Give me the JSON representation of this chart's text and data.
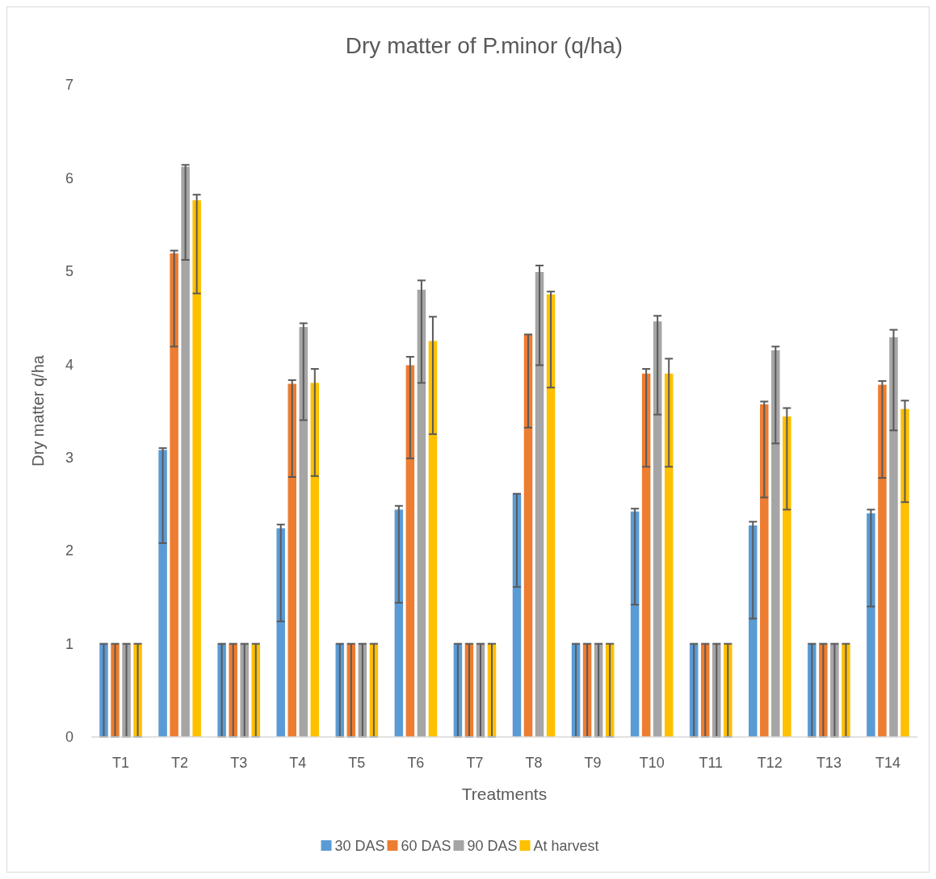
{
  "chart_data": {
    "type": "bar",
    "title": "Dry matter of P.minor (q/ha)",
    "xlabel": "Treatments",
    "ylabel": "Dry matter q/ha",
    "categories": [
      "T1",
      "T2",
      "T3",
      "T4",
      "T5",
      "T6",
      "T7",
      "T8",
      "T9",
      "T10",
      "T11",
      "T12",
      "T13",
      "T14"
    ],
    "ylim": [
      0,
      7
    ],
    "yticks": [
      0,
      1,
      2,
      3,
      4,
      5,
      6,
      7
    ],
    "grid": false,
    "legend": "bottom",
    "series": [
      {
        "name": "30 DAS",
        "color": "#5b9bd5",
        "values": [
          1,
          3.08,
          1,
          2.24,
          1,
          2.44,
          1,
          2.61,
          1,
          2.42,
          1,
          2.27,
          1,
          2.4
        ],
        "errors": [
          [
            0,
            1
          ],
          [
            2.08,
            3.1
          ],
          [
            0,
            1
          ],
          [
            1.24,
            2.28
          ],
          [
            0,
            1
          ],
          [
            1.44,
            2.48
          ],
          [
            0,
            1
          ],
          [
            1.61,
            2.61
          ],
          [
            0,
            1
          ],
          [
            1.42,
            2.45
          ],
          [
            0,
            1
          ],
          [
            1.27,
            2.31
          ],
          [
            0,
            1
          ],
          [
            1.4,
            2.44
          ]
        ]
      },
      {
        "name": "60 DAS",
        "color": "#ed7d31",
        "values": [
          1,
          5.19,
          1,
          3.79,
          1,
          3.99,
          1,
          4.32,
          1,
          3.9,
          1,
          3.57,
          1,
          3.78
        ],
        "errors": [
          [
            0,
            1
          ],
          [
            4.19,
            5.22
          ],
          [
            0,
            1
          ],
          [
            2.79,
            3.83
          ],
          [
            0,
            1
          ],
          [
            2.99,
            4.08
          ],
          [
            0,
            1
          ],
          [
            3.32,
            4.32
          ],
          [
            0,
            1
          ],
          [
            2.9,
            3.95
          ],
          [
            0,
            1
          ],
          [
            2.57,
            3.6
          ],
          [
            0,
            1
          ],
          [
            2.78,
            3.82
          ]
        ]
      },
      {
        "name": "90 DAS",
        "color": "#a5a5a5",
        "values": [
          1,
          6.12,
          1,
          4.4,
          1,
          4.8,
          1,
          4.99,
          1,
          4.46,
          1,
          4.15,
          1,
          4.29
        ],
        "errors": [
          [
            0,
            1
          ],
          [
            5.12,
            6.14
          ],
          [
            0,
            1
          ],
          [
            3.4,
            4.44
          ],
          [
            0,
            1
          ],
          [
            3.8,
            4.9
          ],
          [
            0,
            1
          ],
          [
            3.99,
            5.06
          ],
          [
            0,
            1
          ],
          [
            3.46,
            4.52
          ],
          [
            0,
            1
          ],
          [
            3.15,
            4.19
          ],
          [
            0,
            1
          ],
          [
            3.29,
            4.37
          ]
        ]
      },
      {
        "name": "At harvest",
        "color": "#ffc000",
        "values": [
          1,
          5.76,
          1,
          3.8,
          1,
          4.25,
          1,
          4.75,
          1,
          3.9,
          1,
          3.44,
          1,
          3.52
        ],
        "errors": [
          [
            0,
            1
          ],
          [
            4.76,
            5.82
          ],
          [
            0,
            1
          ],
          [
            2.8,
            3.95
          ],
          [
            0,
            1
          ],
          [
            3.25,
            4.51
          ],
          [
            0,
            1
          ],
          [
            3.75,
            4.78
          ],
          [
            0,
            1
          ],
          [
            2.9,
            4.06
          ],
          [
            0,
            1
          ],
          [
            2.44,
            3.53
          ],
          [
            0,
            1
          ],
          [
            2.52,
            3.61
          ]
        ]
      }
    ]
  }
}
